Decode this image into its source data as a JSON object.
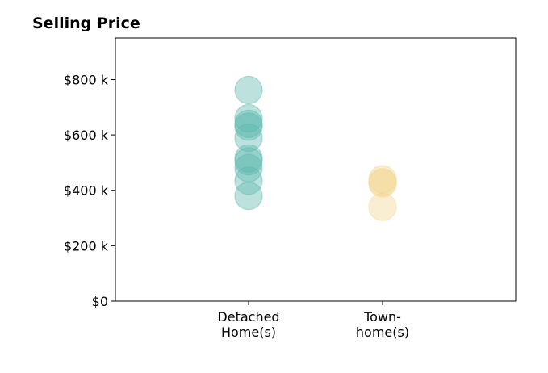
{
  "chart_data": {
    "type": "scatter",
    "title": "Selling Price",
    "xlabel": "",
    "ylabel": "",
    "categories": [
      "Detached\nHome(s)",
      "Town-\nhome(s)"
    ],
    "ylim": [
      0,
      950
    ],
    "y_ticks": [
      {
        "value": 0,
        "label": "$0"
      },
      {
        "value": 200,
        "label": "$200 k"
      },
      {
        "value": 400,
        "label": "$400 k"
      },
      {
        "value": 600,
        "label": "$600 k"
      },
      {
        "value": 800,
        "label": "$800 k"
      }
    ],
    "grid": false,
    "series": [
      {
        "category_index": 0,
        "color": "#5bb6ac",
        "values": [
          762,
          660,
          640,
          630,
          590,
          515,
          505,
          480,
          435,
          380
        ]
      },
      {
        "category_index": 1,
        "color": "#f2d48f",
        "values": [
          440,
          430,
          425,
          340
        ]
      }
    ]
  }
}
